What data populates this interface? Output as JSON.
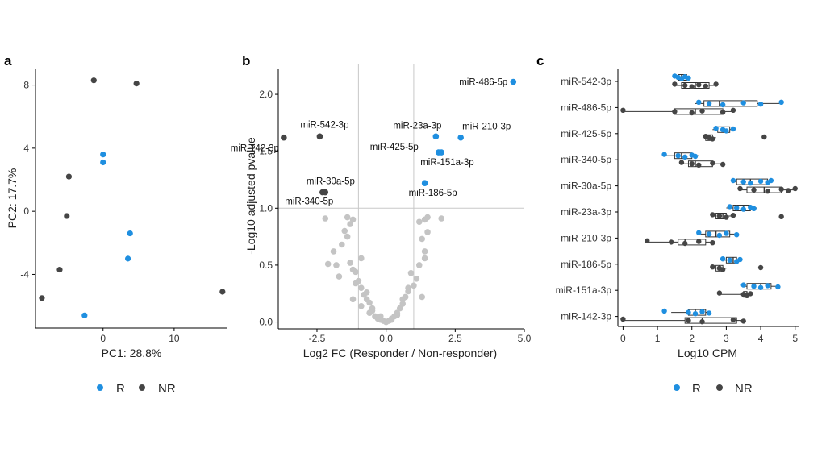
{
  "colors": {
    "R": "#1f8fe0",
    "NR": "#454545",
    "nonsig": "#c4c4c4",
    "ref": "#c8c8c8",
    "box": "#333333"
  },
  "legend": {
    "r_label": "R",
    "nr_label": "NR"
  },
  "chart_data": [
    {
      "panel": "a",
      "type": "scatter",
      "xlabel": "PC1: 28.8%",
      "ylabel": "PC2: 17.7%",
      "xlim": [
        -9.5,
        17.5
      ],
      "ylim": [
        -7.4,
        9.0
      ],
      "xticks": [
        0,
        10
      ],
      "yticks": [
        -4,
        0,
        4,
        8
      ],
      "series": [
        {
          "name": "R",
          "points": [
            [
              0,
              3.6
            ],
            [
              0,
              3.1
            ],
            [
              3.8,
              -1.4
            ],
            [
              3.5,
              -3.0
            ],
            [
              -2.6,
              -6.6
            ]
          ]
        },
        {
          "name": "NR",
          "points": [
            [
              -1.3,
              8.3
            ],
            [
              4.7,
              8.1
            ],
            [
              -4.8,
              2.2
            ],
            [
              -5.1,
              -0.3
            ],
            [
              -6.1,
              -3.7
            ],
            [
              -8.6,
              -5.5
            ],
            [
              16.8,
              -5.1
            ]
          ]
        }
      ]
    },
    {
      "panel": "b",
      "type": "scatter",
      "xlabel": "Log2 FC (Responder / Non-responder)",
      "ylabel": "-Log10 adjusted pvalue",
      "xlim": [
        -3.9,
        5.0
      ],
      "ylim": [
        -0.06,
        2.22
      ],
      "xticks": [
        -2.5,
        0.0,
        2.5,
        5.0
      ],
      "ytick_labels": [
        "0.0",
        "0.5",
        "1.0",
        "1.5",
        "2.0"
      ],
      "reference_lines": {
        "vertical": [
          -1,
          1
        ],
        "horizontal": [
          1.0
        ]
      },
      "labeled_points": [
        {
          "label": "miR-486-5p",
          "x": 4.6,
          "y": 2.11,
          "group": "R"
        },
        {
          "label": "miR-542-3p",
          "x": -2.4,
          "y": 1.63,
          "group": "NR"
        },
        {
          "label": "miR-142-3p",
          "x": -3.7,
          "y": 1.62,
          "group": "NR"
        },
        {
          "label": "miR-23a-3p",
          "x": 1.8,
          "y": 1.63,
          "group": "R"
        },
        {
          "label": "miR-210-3p",
          "x": 2.7,
          "y": 1.62,
          "group": "R"
        },
        {
          "label": "miR-425-5p",
          "x": 1.9,
          "y": 1.49,
          "group": "R"
        },
        {
          "label": "miR-151a-3p",
          "x": 2.0,
          "y": 1.49,
          "group": "R"
        },
        {
          "label": "miR-30a-5p",
          "x": -2.3,
          "y": 1.14,
          "group": "NR"
        },
        {
          "label": "miR-340-5p",
          "x": -2.2,
          "y": 1.14,
          "group": "NR"
        },
        {
          "label": "miR-186-5p",
          "x": 1.4,
          "y": 1.22,
          "group": "R"
        }
      ],
      "nonsignificant_points": [
        [
          -2.2,
          0.91
        ],
        [
          -1.4,
          0.92
        ],
        [
          -1.2,
          0.9
        ],
        [
          -1.3,
          0.86
        ],
        [
          -1.5,
          0.8
        ],
        [
          -1.4,
          0.75
        ],
        [
          -1.6,
          0.68
        ],
        [
          -1.9,
          0.62
        ],
        [
          -2.1,
          0.51
        ],
        [
          -1.8,
          0.5
        ],
        [
          -1.3,
          0.52
        ],
        [
          -1.2,
          0.46
        ],
        [
          -1.1,
          0.44
        ],
        [
          -0.9,
          0.56
        ],
        [
          -1.7,
          0.4
        ],
        [
          -1.1,
          0.34
        ],
        [
          -0.9,
          0.3
        ],
        [
          -0.8,
          0.24
        ],
        [
          -0.7,
          0.2
        ],
        [
          -0.6,
          0.17
        ],
        [
          -0.9,
          0.14
        ],
        [
          -0.5,
          0.12
        ],
        [
          -0.6,
          0.08
        ],
        [
          -0.4,
          0.05
        ],
        [
          -0.3,
          0.03
        ],
        [
          -0.2,
          0.02
        ],
        [
          -0.1,
          0.01
        ],
        [
          0.0,
          0.0
        ],
        [
          0.1,
          0.01
        ],
        [
          0.2,
          0.03
        ],
        [
          0.3,
          0.05
        ],
        [
          0.4,
          0.08
        ],
        [
          0.5,
          0.12
        ],
        [
          0.6,
          0.16
        ],
        [
          0.7,
          0.22
        ],
        [
          0.8,
          0.27
        ],
        [
          1.0,
          0.32
        ],
        [
          1.1,
          0.38
        ],
        [
          0.9,
          0.43
        ],
        [
          1.2,
          0.5
        ],
        [
          1.4,
          0.56
        ],
        [
          1.4,
          0.62
        ],
        [
          1.3,
          0.73
        ],
        [
          1.5,
          0.79
        ],
        [
          1.4,
          0.9
        ],
        [
          1.5,
          0.92
        ],
        [
          2.0,
          0.91
        ],
        [
          1.2,
          0.88
        ],
        [
          -1.0,
          0.36
        ],
        [
          -0.7,
          0.26
        ],
        [
          0.6,
          0.2
        ],
        [
          0.8,
          0.3
        ],
        [
          -0.5,
          0.1
        ],
        [
          0.4,
          0.06
        ],
        [
          -1.2,
          0.2
        ],
        [
          1.3,
          0.22
        ],
        [
          -0.2,
          0.05
        ],
        [
          0.2,
          0.02
        ]
      ]
    },
    {
      "panel": "c",
      "type": "box",
      "xlabel": "Log10 CPM",
      "xlim": [
        -0.15,
        5.1
      ],
      "xticks": [
        0,
        1,
        2,
        3,
        4,
        5
      ],
      "categories": [
        "miR-542-3p",
        "miR-486-5p",
        "miR-425-5p",
        "miR-340-5p",
        "miR-30a-5p",
        "miR-23a-3p",
        "miR-210-3p",
        "miR-186-5p",
        "miR-151a-3p",
        "miR-142-3p"
      ],
      "series": [
        {
          "name": "R",
          "boxes": [
            [
              1.45,
              1.6,
              1.7,
              1.85,
              1.95
            ],
            [
              2.1,
              2.35,
              2.8,
              3.9,
              4.6
            ],
            [
              2.6,
              2.75,
              2.9,
              3.1,
              3.2
            ],
            [
              1.2,
              1.5,
              1.7,
              2.0,
              2.2
            ],
            [
              3.2,
              3.3,
              3.7,
              4.2,
              4.3
            ],
            [
              3.0,
              3.2,
              3.5,
              3.7,
              3.9
            ],
            [
              2.2,
              2.4,
              2.7,
              3.1,
              3.3
            ],
            [
              2.9,
              3.0,
              3.2,
              3.3,
              3.4
            ],
            [
              3.5,
              3.6,
              4.0,
              4.3,
              4.5
            ],
            [
              1.4,
              1.9,
              2.1,
              2.4,
              2.5
            ]
          ],
          "points": [
            [
              1.5,
              1.6,
              1.7,
              1.8,
              1.9
            ],
            [
              2.2,
              2.5,
              2.9,
              3.5,
              4.0,
              4.6
            ],
            [
              2.7,
              2.9,
              3.0,
              3.2
            ],
            [
              1.2,
              1.6,
              1.8,
              2.0,
              2.1
            ],
            [
              3.2,
              3.5,
              3.7,
              4.0,
              4.2,
              4.3
            ],
            [
              3.1,
              3.3,
              3.5,
              3.7,
              3.8
            ],
            [
              2.2,
              2.5,
              2.8,
              3.0,
              3.3
            ],
            [
              2.9,
              3.1,
              3.3,
              3.4
            ],
            [
              3.5,
              3.8,
              4.0,
              4.2,
              4.5
            ],
            [
              1.2,
              1.9,
              2.1,
              2.3,
              2.5
            ]
          ]
        },
        {
          "name": "NR",
          "boxes": [
            [
              1.5,
              1.7,
              2.1,
              2.5,
              2.7
            ],
            [
              0.0,
              1.5,
              2.1,
              2.9,
              3.2
            ],
            [
              2.4,
              2.4,
              2.5,
              2.6,
              2.7
            ],
            [
              1.7,
              1.9,
              2.1,
              2.6,
              2.9
            ],
            [
              3.4,
              3.6,
              4.1,
              4.6,
              5.0
            ],
            [
              2.6,
              2.7,
              2.9,
              3.0,
              3.2
            ],
            [
              0.7,
              1.6,
              1.8,
              2.4,
              2.6
            ],
            [
              2.6,
              2.7,
              2.8,
              2.9,
              3.0
            ],
            [
              2.8,
              3.5,
              3.6,
              3.6,
              3.7
            ],
            [
              0.0,
              1.8,
              2.3,
              3.3,
              3.5
            ]
          ],
          "points": [
            [
              1.5,
              1.8,
              2.0,
              2.2,
              2.4,
              2.7
            ],
            [
              0.0,
              1.5,
              2.0,
              2.3,
              2.9,
              3.2
            ],
            [
              2.4,
              2.5,
              2.6,
              4.1
            ],
            [
              1.7,
              2.0,
              2.2,
              2.6,
              2.9
            ],
            [
              3.4,
              3.8,
              4.2,
              4.6,
              4.8,
              5.0
            ],
            [
              2.6,
              2.8,
              3.0,
              3.2,
              4.6
            ],
            [
              0.7,
              1.4,
              1.8,
              2.2,
              2.6
            ],
            [
              2.6,
              2.8,
              2.9,
              4.0
            ],
            [
              2.8,
              3.5,
              3.6,
              3.7
            ],
            [
              0.0,
              1.9,
              2.3,
              3.2,
              3.5
            ]
          ]
        }
      ]
    }
  ]
}
